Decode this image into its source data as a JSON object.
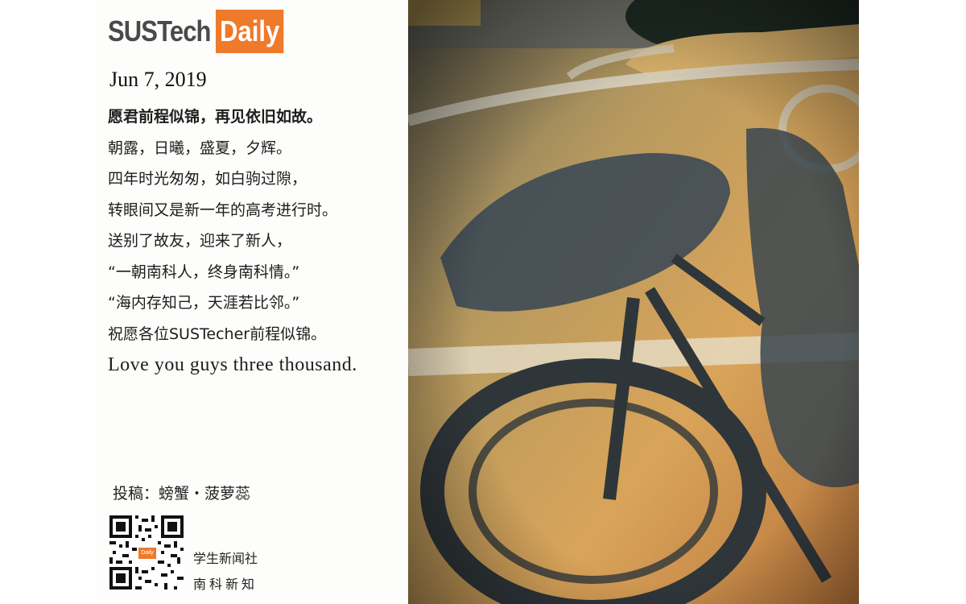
{
  "header": {
    "logo_left": "SUSTech",
    "logo_right": "Daily",
    "date": "Jun 7, 2019"
  },
  "poem": {
    "lines": [
      "愿君前程似锦，再见依旧如故。",
      "朝露，日曦，盛夏，夕辉。",
      "四年时光匆匆，如白驹过隙，",
      "转眼间又是新一年的高考进行时。",
      "送别了故友，迎来了新人，",
      "“一朝南科人，终身南科情。”",
      "“海内存知己，天涯若比邻。”",
      "祝愿各位SUSTecher前程似锦。",
      "Love you guys three thousand."
    ]
  },
  "footer": {
    "credit": "投稿：螃蟹・菠萝蕊",
    "org_line1": "学生新闻社",
    "org_line2": "南科新知"
  },
  "colors": {
    "brand_orange": "#ee7a2a",
    "logo_gray": "#4a4a4a"
  },
  "icons": {
    "qr": "qr-code-icon"
  }
}
